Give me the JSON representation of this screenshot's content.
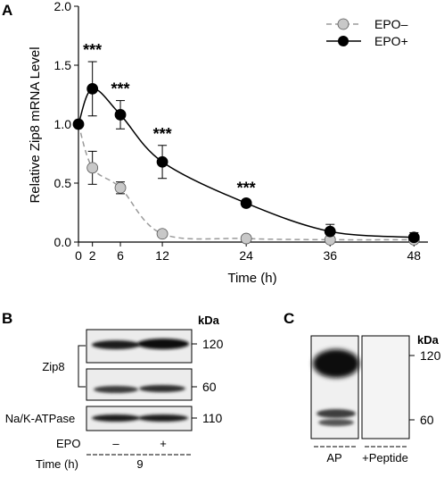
{
  "panel_a": {
    "letter": "A",
    "ylabel": "Relative Zip8 mRNA Level",
    "xlabel": "Time (h)",
    "legend": {
      "epo_minus": "EPO–",
      "epo_plus": "EPO+"
    }
  },
  "chart_data": {
    "type": "line",
    "xlabel": "Time (h)",
    "ylabel": "Relative Zip8 mRNA Level",
    "xlim": [
      0,
      50
    ],
    "ylim": [
      0,
      2.0
    ],
    "xticks": [
      "0",
      "2",
      "6",
      "12",
      "24",
      "36",
      "48"
    ],
    "xtick_values": [
      0,
      2,
      6,
      12,
      24,
      36,
      48
    ],
    "yticks": [
      "0.0",
      "0.5",
      "1.0",
      "1.5",
      "2.0"
    ],
    "ytick_values": [
      0,
      0.5,
      1.0,
      1.5,
      2.0
    ],
    "legend_position": "top-right",
    "grid": false,
    "series": [
      {
        "name": "EPO–",
        "color": "#c8c8c8",
        "line": "dashed",
        "x": [
          0,
          2,
          6,
          12,
          24,
          36,
          48
        ],
        "y": [
          1.0,
          0.63,
          0.46,
          0.07,
          0.03,
          0.02,
          0.02
        ],
        "err": [
          0,
          0.14,
          0.05,
          0.02,
          0.01,
          0.01,
          0.01
        ]
      },
      {
        "name": "EPO+",
        "color": "#000000",
        "line": "solid",
        "x": [
          0,
          2,
          6,
          12,
          24,
          36,
          48
        ],
        "y": [
          1.0,
          1.3,
          1.08,
          0.68,
          0.33,
          0.09,
          0.04
        ],
        "err": [
          0,
          0.23,
          0.12,
          0.14,
          0.03,
          0.06,
          0.04
        ]
      }
    ],
    "annotations": [
      {
        "x": 2,
        "text": "***"
      },
      {
        "x": 6,
        "text": "***"
      },
      {
        "x": 12,
        "text": "***"
      },
      {
        "x": 24,
        "text": "***"
      }
    ]
  },
  "panel_b": {
    "letter": "B",
    "kda_header": "kDa",
    "kda_marks": [
      "120",
      "60",
      "110"
    ],
    "row_zip8": "Zip8",
    "row_atpase": "Na/K-ATPase",
    "epo_label": "EPO",
    "epo_minus": "–",
    "epo_plus": "+",
    "time_label": "Time (h)",
    "time_value": "9"
  },
  "panel_c": {
    "letter": "C",
    "kda_header": "kDa",
    "kda_marks": [
      "120",
      "60"
    ],
    "lane_ap": "AP",
    "lane_peptide": "+Peptide"
  }
}
